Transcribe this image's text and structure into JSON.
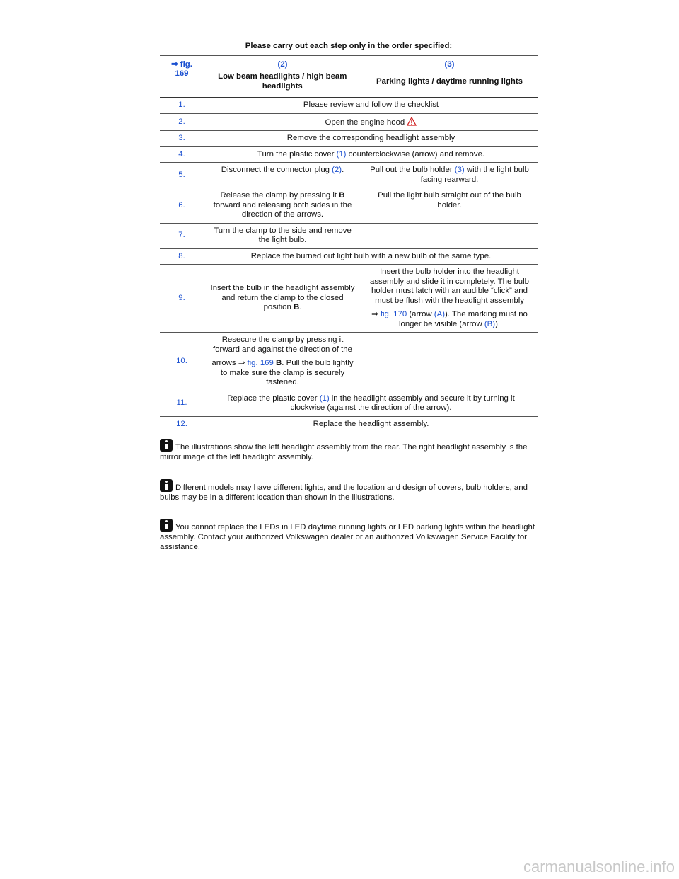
{
  "table": {
    "caption": "Please carry out each step only in the order specified:",
    "fig_ref": "⇒ fig. 169",
    "col_numbers": [
      "(2)",
      "(3)"
    ],
    "col_titles": [
      "Low beam headlights / high beam headlights",
      "Parking lights / daytime running lights"
    ],
    "rows": [
      {
        "step": "1.",
        "cells": [
          [
            [
              "Please review and follow the checklist"
            ]
          ]
        ]
      },
      {
        "step": "2.",
        "cells": [
          [
            [
              "Open the engine hood"
            ]
          ]
        ]
      },
      {
        "step": "3.",
        "cells": [
          [
            [
              "Remove the corresponding headlight assembly"
            ]
          ]
        ]
      },
      {
        "step": "4.",
        "cells": [
          [
            [
              "Turn the plastic cover ",
              "(1)",
              " counterclockwise (arrow) and remove."
            ]
          ]
        ]
      },
      {
        "step": "5.",
        "cells": [
          [
            [
              "Disconnect the connector plug ",
              "(2)",
              "."
            ]
          ],
          [
            [
              "Pull out the bulb holder ",
              "(3)",
              " with the light bulb facing rearward."
            ]
          ]
        ]
      },
      {
        "step": "6.",
        "cells": [
          [
            [
              "Release the clamp by pressing it ",
              "B",
              " forward and releasing both sides in the direction of the arrows."
            ]
          ],
          [
            [
              "Pull the light bulb straight out of the bulb holder."
            ]
          ]
        ]
      },
      {
        "step": "7.",
        "cells": [
          [
            [
              "Turn the clamp to the side and remove the light bulb."
            ]
          ],
          []
        ]
      },
      {
        "step": "8.",
        "cells": [
          [
            [
              "Replace the burned out light bulb with a new bulb of the same type."
            ]
          ]
        ]
      },
      {
        "step": "9.",
        "cells": [
          [
            [
              "Insert the bulb in the headlight assembly and return the clamp to the closed position ",
              "B",
              "."
            ]
          ],
          [
            [
              "Insert the bulb holder into the headlight assembly and slide it in completely. The bulb holder must latch with an audible “click” and must be flush with the headlight assembly"
            ],
            [
              "⇒ ",
              "fig. 170",
              " (arrow ",
              "(A)",
              "). The marking must no longer be visible (arrow ",
              "(B)",
              ")."
            ]
          ]
        ]
      },
      {
        "step": "10.",
        "cells": [
          [
            [
              "Resecure the clamp by pressing it forward and against the direction of the"
            ],
            [
              "arrows ⇒ ",
              "fig. 169",
              " B",
              ". Pull the bulb lightly to make sure the clamp is securely fastened."
            ]
          ],
          []
        ]
      },
      {
        "step": "11.",
        "cells": [
          [
            [
              "Replace the plastic cover ",
              "(1)",
              " in the headlight assembly and secure it by turning it clockwise (against the direction of the arrow)."
            ]
          ]
        ]
      },
      {
        "step": "12.",
        "cells": [
          [
            [
              "Replace the headlight assembly."
            ]
          ]
        ]
      }
    ]
  },
  "notes": [
    "The illustrations show the left headlight assembly from the rear. The right headlight assembly is the mirror image of the left headlight assembly.",
    "Different models may have different lights, and the location and design of covers, bulb holders, and bulbs may be in a different location than shown in the illustrations.",
    "You cannot replace the LEDs in LED daytime running lights or LED parking lights within the headlight assembly. Contact your authorized Volkswagen dealer or an authorized Volkswagen Service Facility for assistance."
  ],
  "watermark": "carmanualsonline.info"
}
